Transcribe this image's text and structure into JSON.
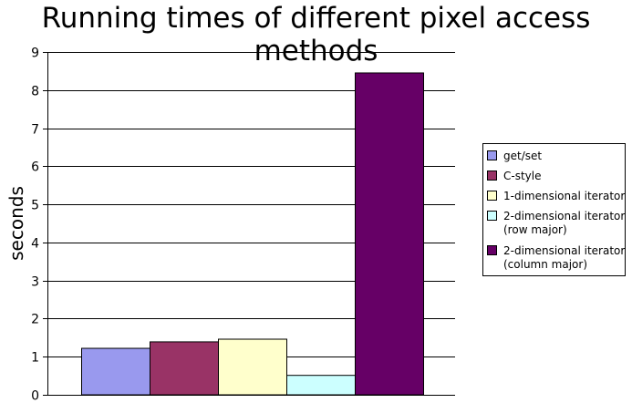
{
  "chart_data": {
    "type": "bar",
    "title": "Running times of different pixel access methods",
    "ylabel": "seconds",
    "xlabel": "",
    "ylim": [
      0,
      9
    ],
    "yticks": [
      0,
      1,
      2,
      3,
      4,
      5,
      6,
      7,
      8,
      9
    ],
    "grid": true,
    "legend_position": "right",
    "series": [
      {
        "name": "get/set",
        "value": 1.22,
        "color": "#9999ee"
      },
      {
        "name": "C-style",
        "value": 1.39,
        "color": "#993366"
      },
      {
        "name": "1-dimensional iterator",
        "value": 1.46,
        "color": "#ffffcc"
      },
      {
        "name": "2-dimensional iterator\n(row major)",
        "value": 0.51,
        "color": "#ccffff"
      },
      {
        "name": "2-dimensional iterator\n(column major)",
        "value": 8.45,
        "color": "#660066"
      }
    ]
  }
}
